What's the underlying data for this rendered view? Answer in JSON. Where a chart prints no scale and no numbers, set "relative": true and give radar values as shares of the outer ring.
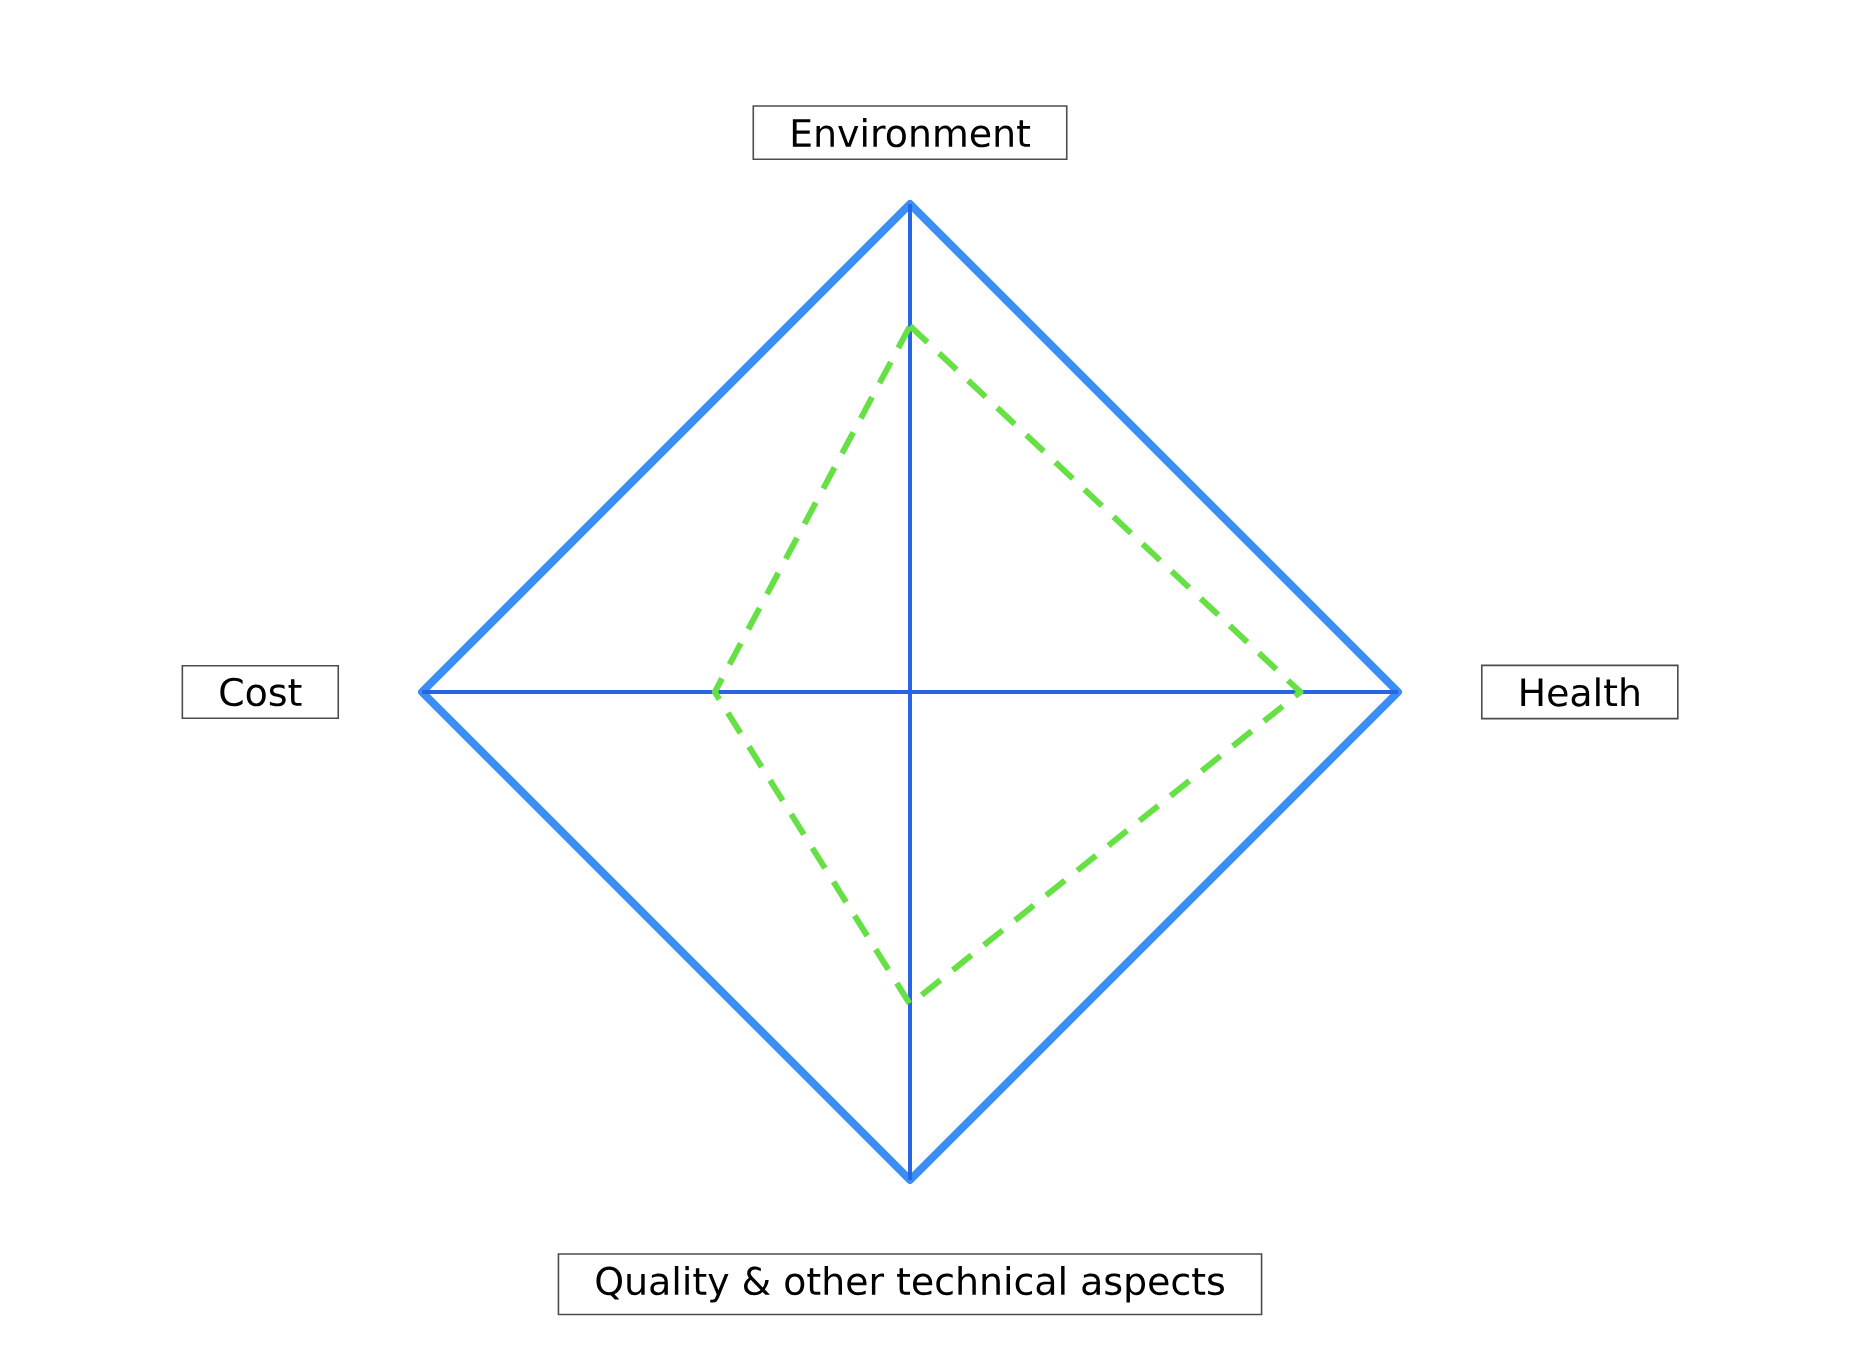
{
  "chart_data": {
    "type": "radar",
    "relative": true,
    "grid": true,
    "categories": [
      "Environment",
      "Health",
      "Quality & other technical aspects",
      "Cost"
    ],
    "series": [
      {
        "color": "#66e044",
        "line_style": "dashed",
        "values": [
          0.75,
          0.8,
          0.64,
          0.4
        ]
      }
    ]
  }
}
